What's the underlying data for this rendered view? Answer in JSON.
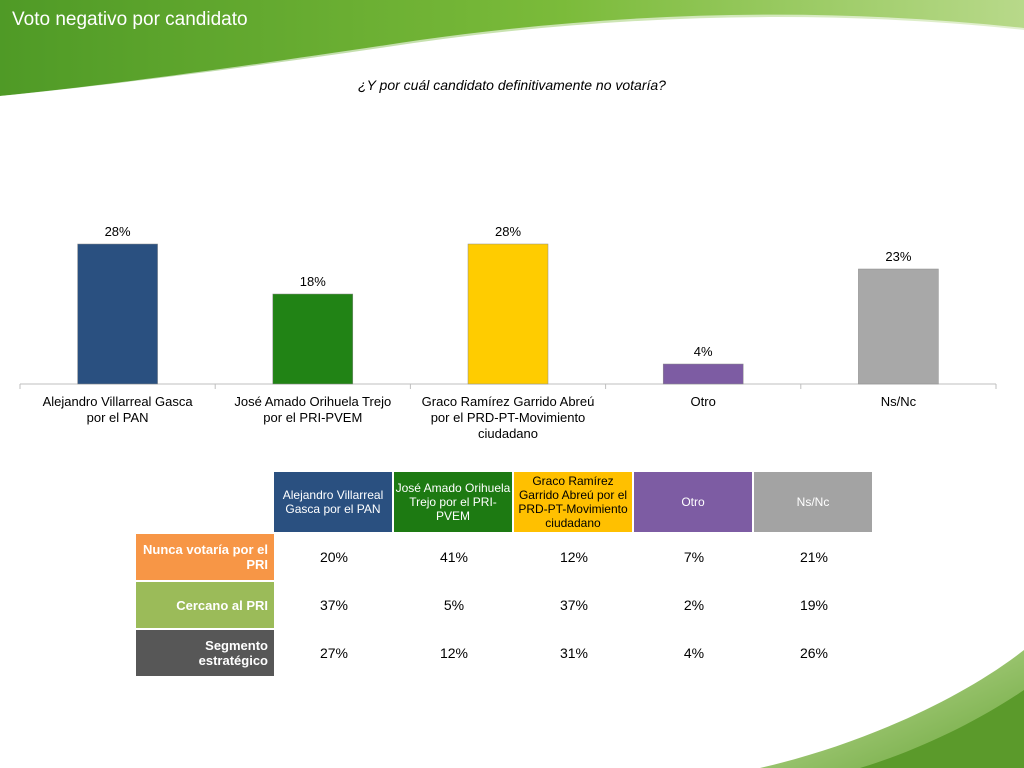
{
  "header": {
    "title": "Voto negativo por candidato",
    "green_color": "#5a9e2e",
    "light_green_color": "#a6cf63"
  },
  "question": "¿Y por cuál candidato definitivamente no votaría?",
  "chart_data": {
    "type": "bar",
    "title": "",
    "xlabel": "",
    "ylabel": "",
    "ylim": [
      0,
      30
    ],
    "grid": false,
    "categories": [
      "Alejandro Villarreal Gasca por el PAN",
      "José Amado Orihuela Trejo por el PRI-PVEM",
      "Graco Ramírez Garrido Abreú por el PRD-PT-Movimiento ciudadano",
      "Otro",
      "Ns/Nc"
    ],
    "values": [
      28,
      18,
      28,
      4,
      23
    ],
    "value_labels": [
      "28%",
      "18%",
      "28%",
      "4%",
      "23%"
    ],
    "colors": [
      "#2a5080",
      "#218315",
      "#ffcc00",
      "#7d5ca3",
      "#a8a8a8"
    ]
  },
  "table": {
    "columns": [
      {
        "label": "Alejandro Villarreal Gasca por el PAN",
        "color": "#2a5080",
        "light": false
      },
      {
        "label": "José Amado Orihuela Trejo por el PRI-PVEM",
        "color": "#1d7a12",
        "light": false
      },
      {
        "label": "Graco Ramírez Garrido Abreú por el PRD-PT-Movimiento ciudadano",
        "color": "#ffc000",
        "light": true
      },
      {
        "label": "Otro",
        "color": "#7d5ca3",
        "light": false
      },
      {
        "label": "Ns/Nc",
        "color": "#a3a3a3",
        "light": false
      }
    ],
    "rows": [
      {
        "label": "Nunca votaría por el PRI",
        "color": "#f79646",
        "values": [
          "20%",
          "41%",
          "12%",
          "7%",
          "21%"
        ]
      },
      {
        "label": "Cercano al PRI",
        "color": "#9bbb59",
        "values": [
          "37%",
          "5%",
          "37%",
          "2%",
          "19%"
        ]
      },
      {
        "label": "Segmento estratégico",
        "color": "#575757",
        "values": [
          "27%",
          "12%",
          "31%",
          "4%",
          "26%"
        ]
      }
    ]
  }
}
